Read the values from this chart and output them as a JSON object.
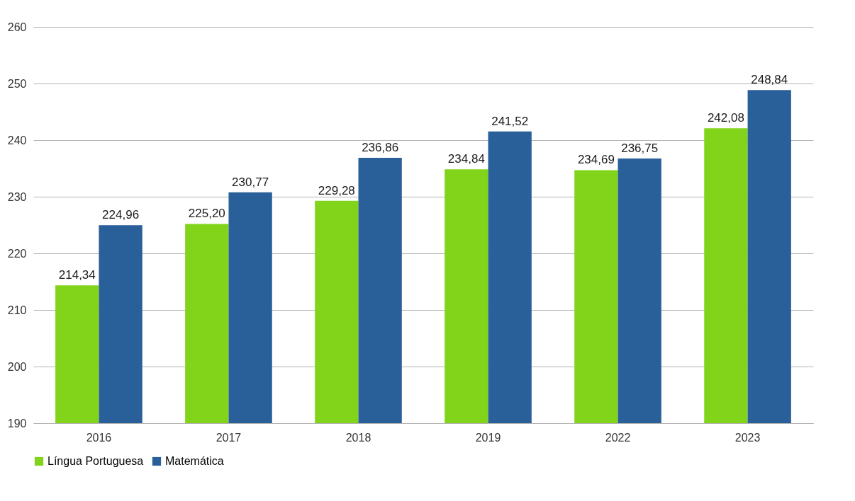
{
  "chart_data": {
    "type": "bar",
    "categories": [
      "2016",
      "2017",
      "2018",
      "2019",
      "2022",
      "2023"
    ],
    "series": [
      {
        "name": "Língua Portuguesa",
        "color": "#81d41a",
        "values": [
          214.34,
          225.2,
          229.28,
          234.84,
          234.69,
          242.08
        ],
        "value_labels": [
          "214,34",
          "225,20",
          "229,28",
          "234,84",
          "234,69",
          "242,08"
        ]
      },
      {
        "name": "Matemática",
        "color": "#2a6099",
        "values": [
          224.96,
          230.77,
          236.86,
          241.52,
          236.75,
          248.84
        ],
        "value_labels": [
          "224,96",
          "230,77",
          "236,86",
          "241,52",
          "236,75",
          "248,84"
        ]
      }
    ],
    "ylim": [
      190,
      260
    ],
    "yticks": [
      190,
      200,
      210,
      220,
      230,
      240,
      250,
      260
    ],
    "grid": "y",
    "legend": "bottom"
  }
}
